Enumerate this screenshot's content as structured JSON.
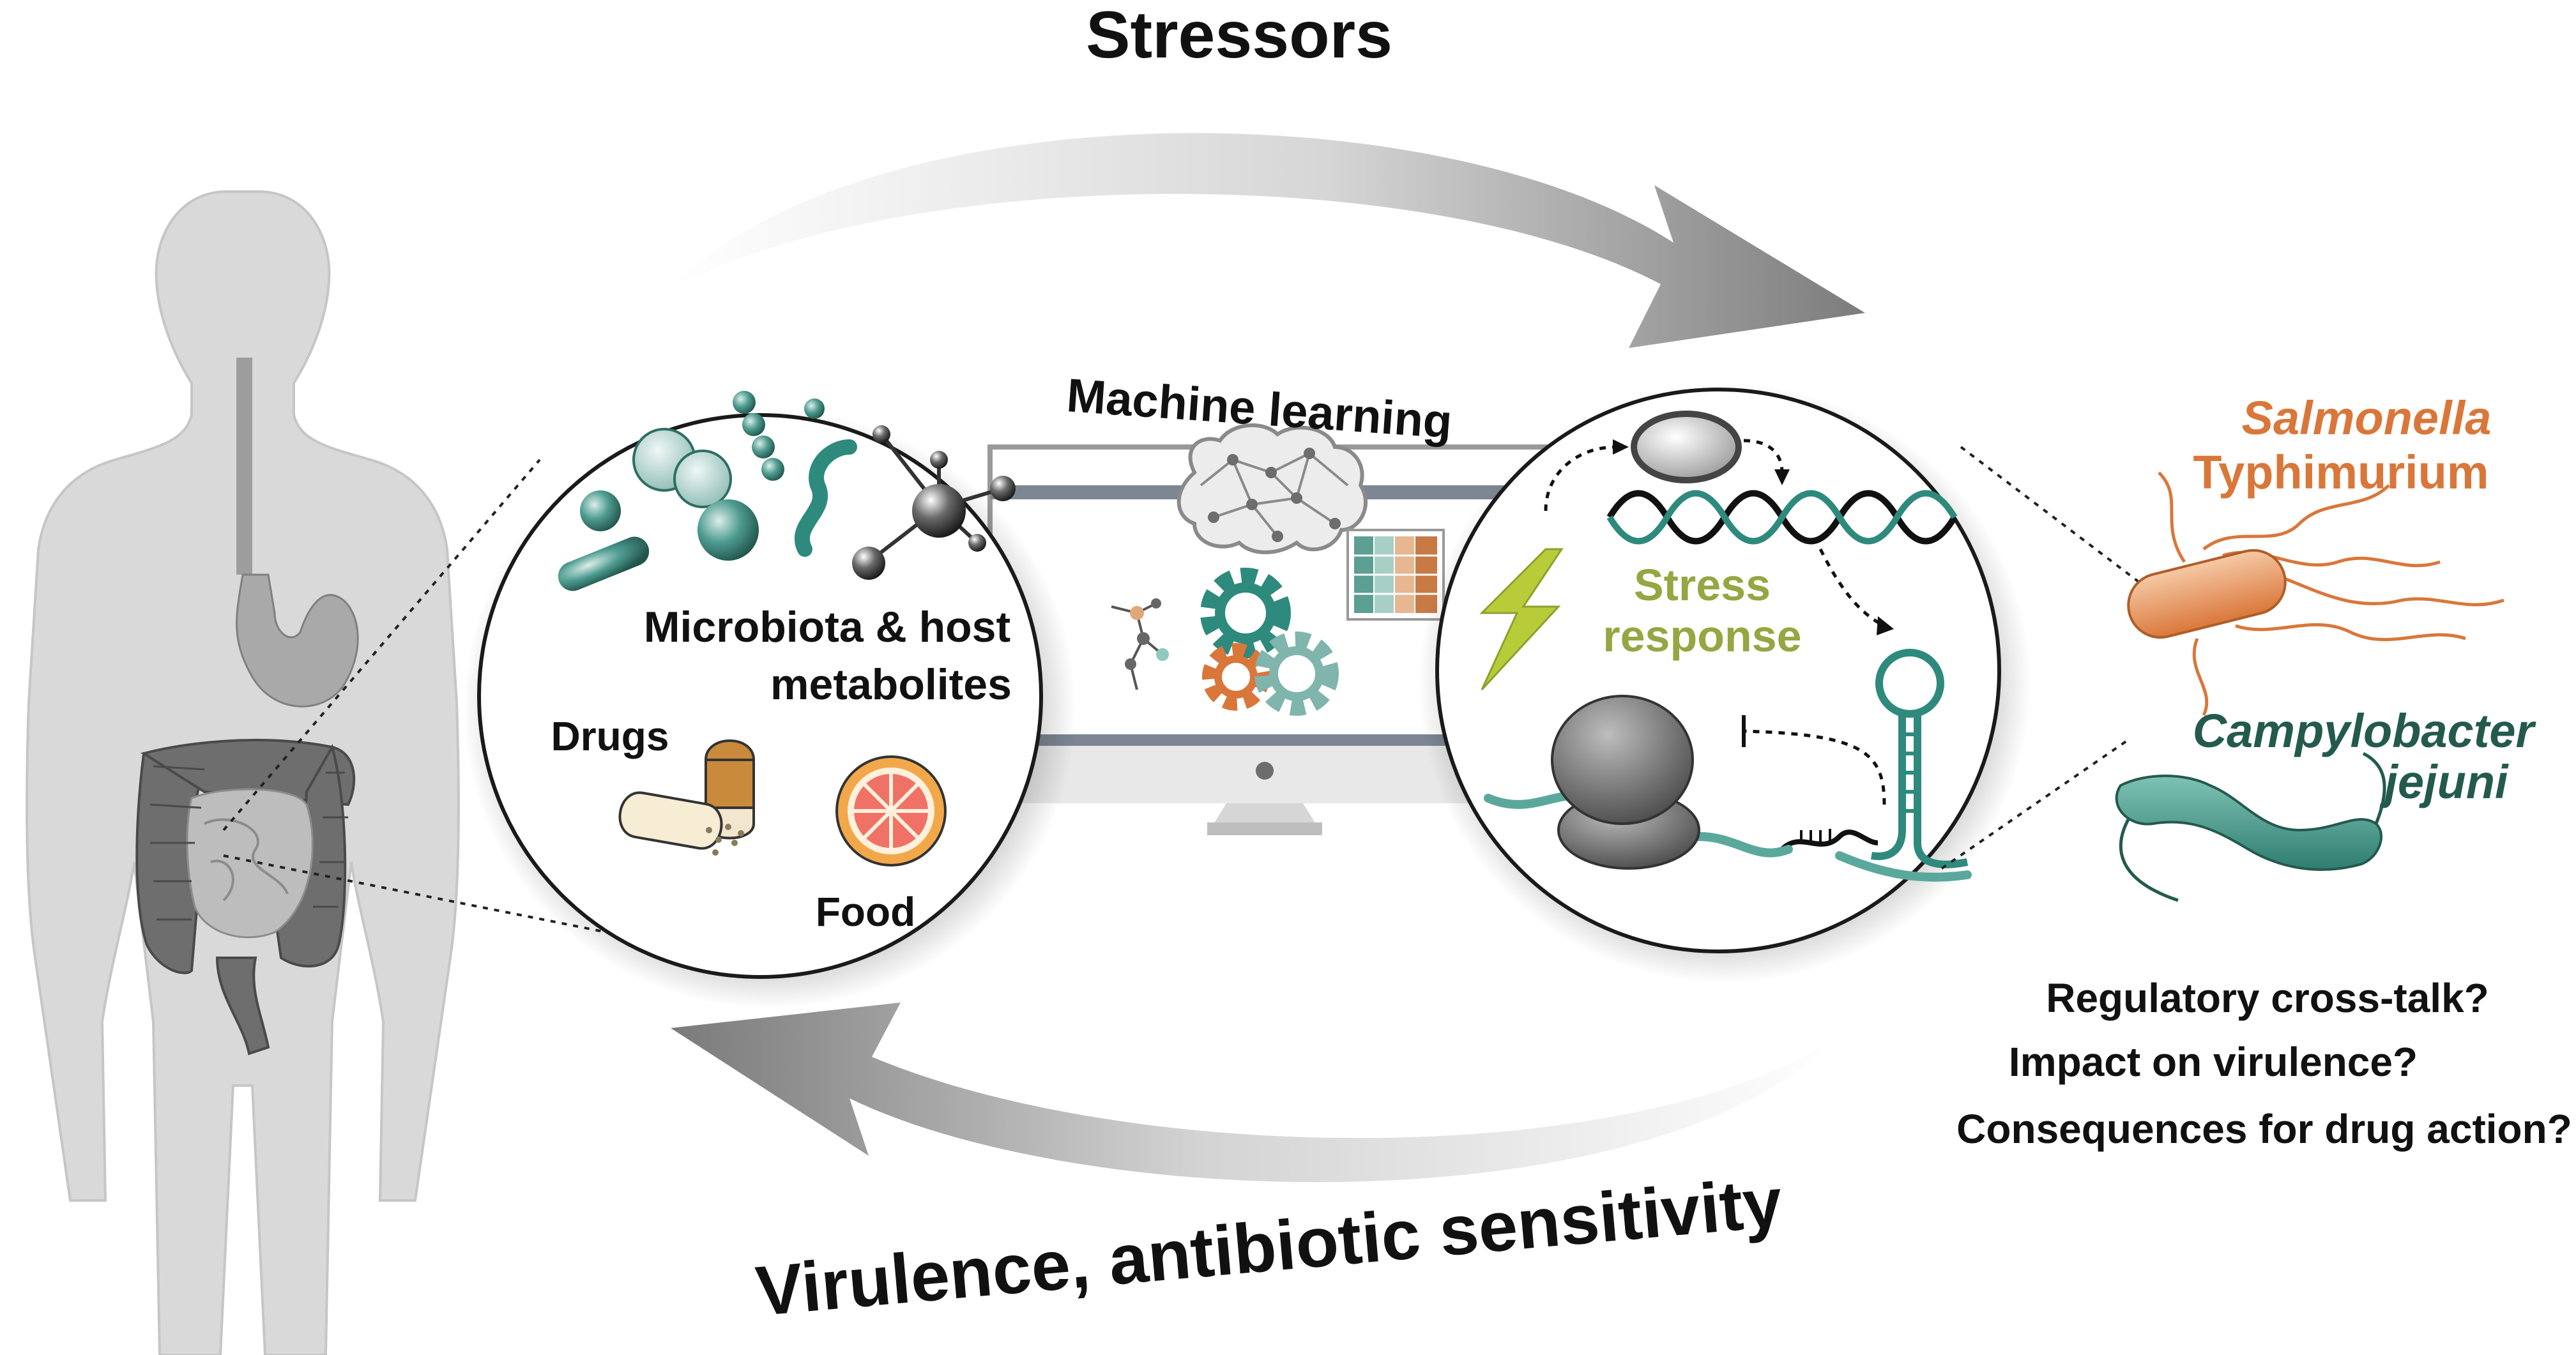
{
  "labels": {
    "stressors": "Stressors",
    "virulence": "Virulence, antibiotic sensitivity",
    "machine_learning": "Machine learning",
    "microbiota_line1": "Microbiota & host",
    "microbiota_line2": "metabolites",
    "drugs": "Drugs",
    "food": "Food",
    "stress_line1": "Stress",
    "stress_line2": "response",
    "salmonella_line1": "Salmonella",
    "salmonella_line2": "Typhimurium",
    "campylobacter_line1": "Campylobacter",
    "campylobacter_line2": "jejuni",
    "question1": "Regulatory cross-talk?",
    "question2": "Impact on virulence?",
    "question3": "Consequences for drug action?"
  },
  "colors": {
    "salmonella": "#d9773a",
    "campylobacter": "#245a4e",
    "teal": "#2e8a7c",
    "stress_green": "#95a642",
    "bolt": "#b8cc3a",
    "arrow_gray": "#8d8d8d",
    "body_gray": "#d9d9d9",
    "text": "#111111"
  },
  "icons": {
    "body": "human-body-icon",
    "gut": "intestine-icon",
    "brain": "brain-network-icon",
    "gears": "gears-icon",
    "heatmap": "heatmap-icon",
    "bolt": "lightning-bolt-icon",
    "ribosome": "ribosome-icon",
    "rna": "rna-hairpin-icon",
    "dna": "dna-helix-icon"
  }
}
